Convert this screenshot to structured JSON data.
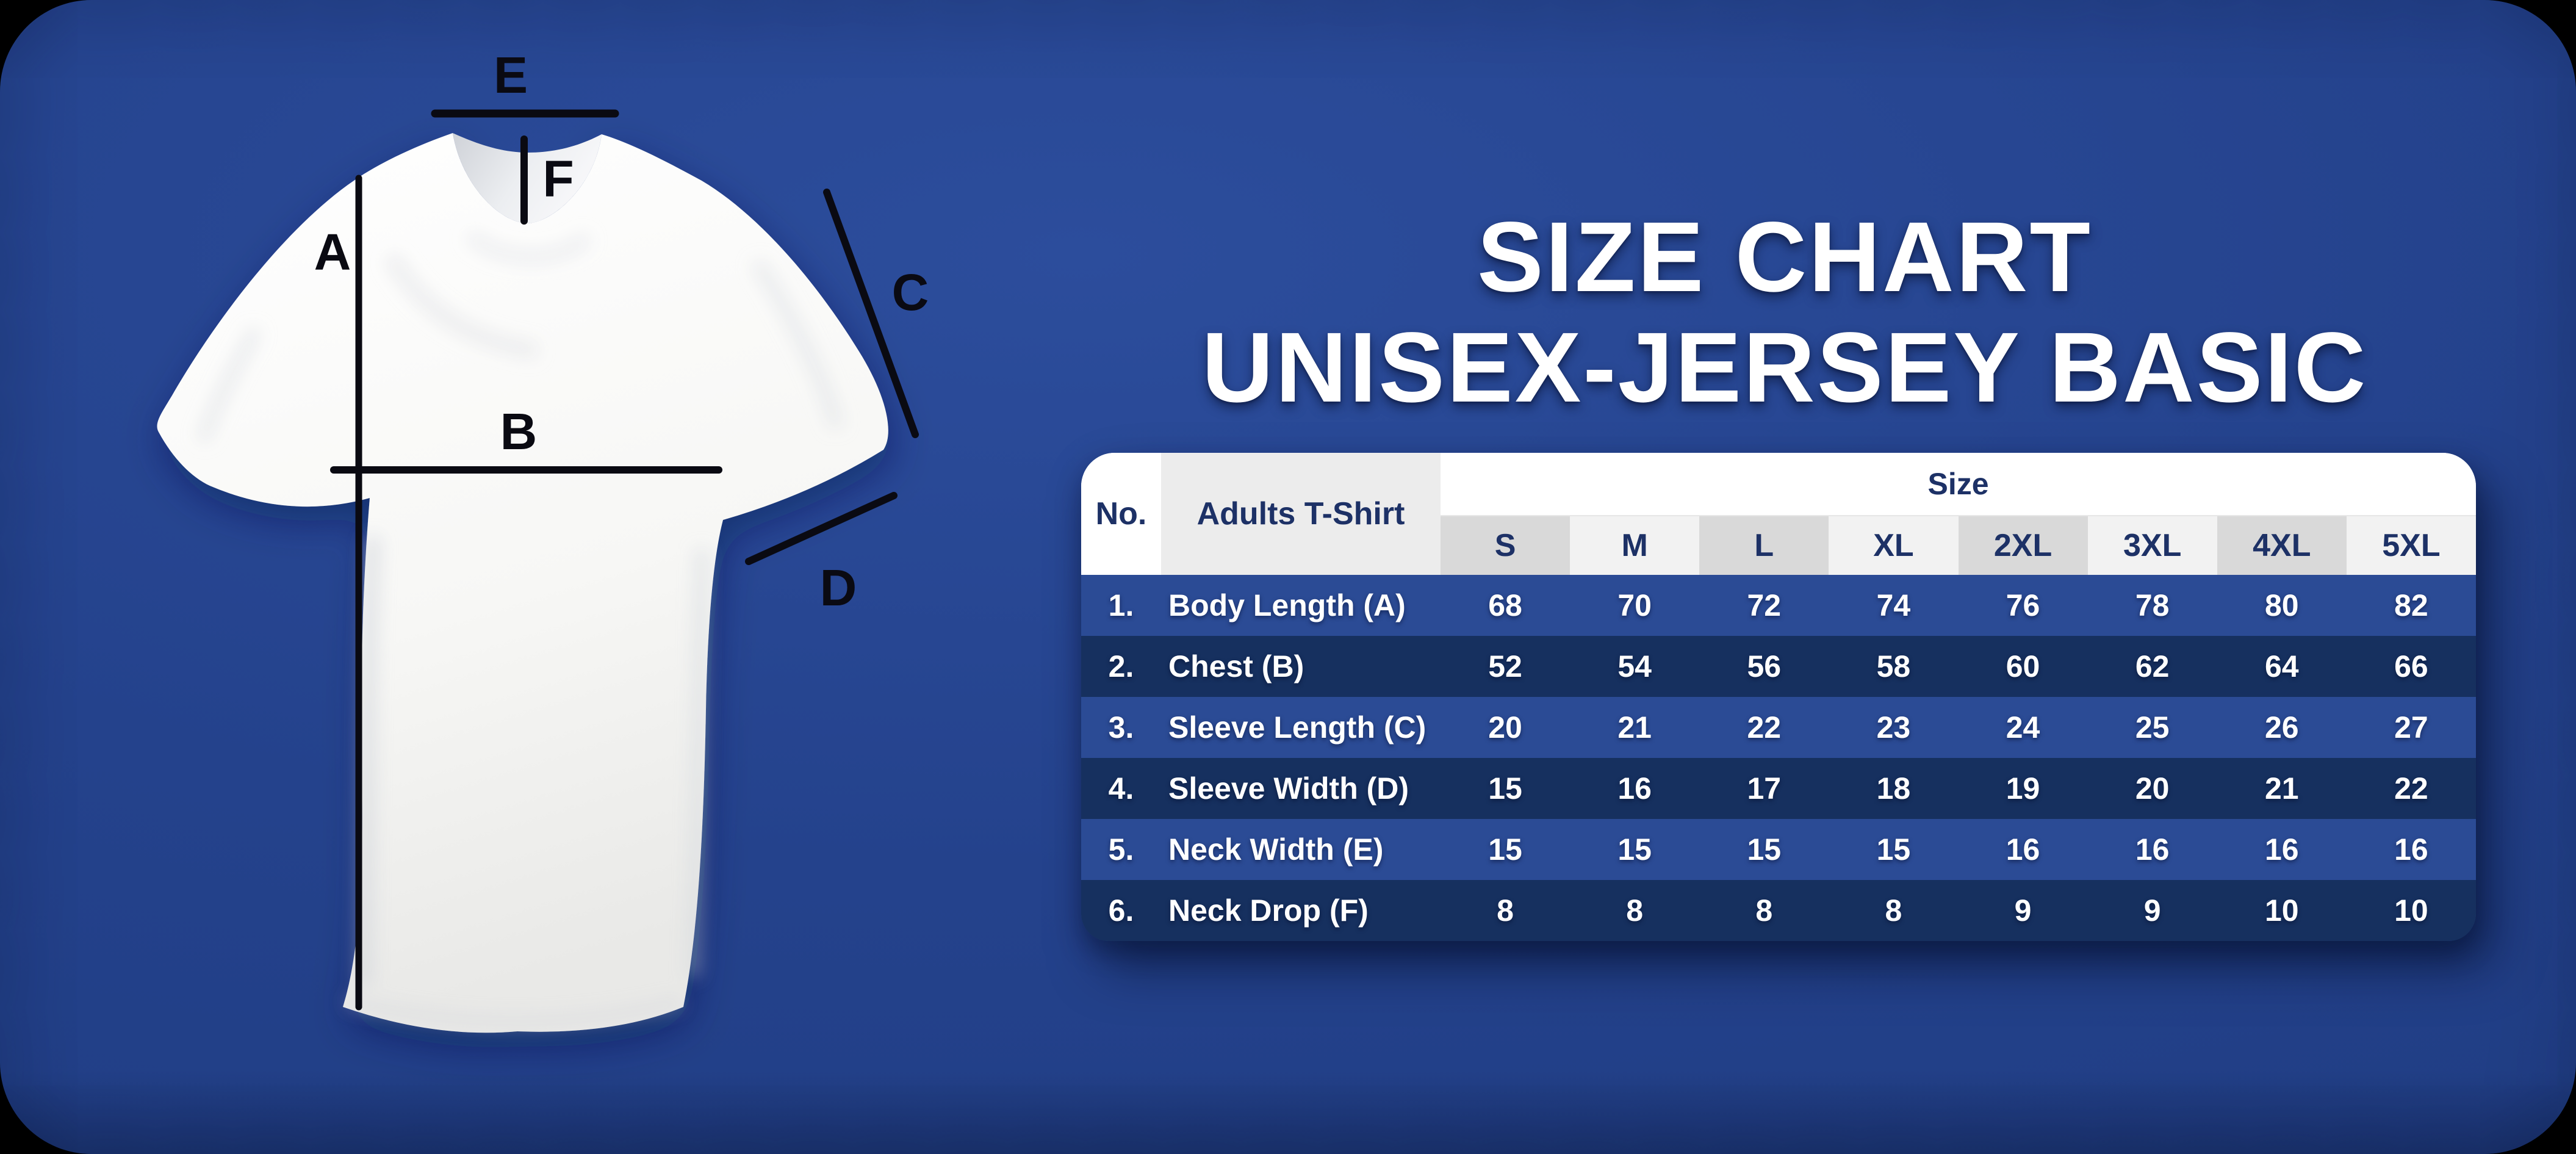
{
  "title": {
    "line1": "SIZE CHART",
    "line2": "UNISEX-JERSEY BASIC"
  },
  "diagram": {
    "markers": [
      "E",
      "F",
      "A",
      "B",
      "C",
      "D"
    ]
  },
  "colors": {
    "panel_background": "#24428c",
    "row_light": "#2b4b95",
    "row_dark": "#16305f",
    "header_text": "#1d3166",
    "header_shade_gray": "#d9d9d9",
    "header_shade_light": "#f2f2f2"
  },
  "chart_data": {
    "type": "table",
    "title": "SIZE CHART UNISEX-JERSEY BASIC",
    "header": {
      "no": "No.",
      "item": "Adults T-Shirt",
      "size_group": "Size"
    },
    "size_columns": [
      "S",
      "M",
      "L",
      "XL",
      "2XL",
      "3XL",
      "4XL",
      "5XL"
    ],
    "rows": [
      {
        "no": "1.",
        "label": "Body Length (A)",
        "values": [
          "68",
          "70",
          "72",
          "74",
          "76",
          "78",
          "80",
          "82"
        ]
      },
      {
        "no": "2.",
        "label": "Chest (B)",
        "values": [
          "52",
          "54",
          "56",
          "58",
          "60",
          "62",
          "64",
          "66"
        ]
      },
      {
        "no": "3.",
        "label": "Sleeve Length (C)",
        "values": [
          "20",
          "21",
          "22",
          "23",
          "24",
          "25",
          "26",
          "27"
        ]
      },
      {
        "no": "4.",
        "label": "Sleeve Width (D)",
        "values": [
          "15",
          "16",
          "17",
          "18",
          "19",
          "20",
          "21",
          "22"
        ]
      },
      {
        "no": "5.",
        "label": "Neck Width (E)",
        "values": [
          "15",
          "15",
          "15",
          "15",
          "16",
          "16",
          "16",
          "16"
        ]
      },
      {
        "no": "6.",
        "label": "Neck Drop (F)",
        "values": [
          "8",
          "8",
          "8",
          "8",
          "9",
          "9",
          "10",
          "10"
        ]
      }
    ]
  }
}
